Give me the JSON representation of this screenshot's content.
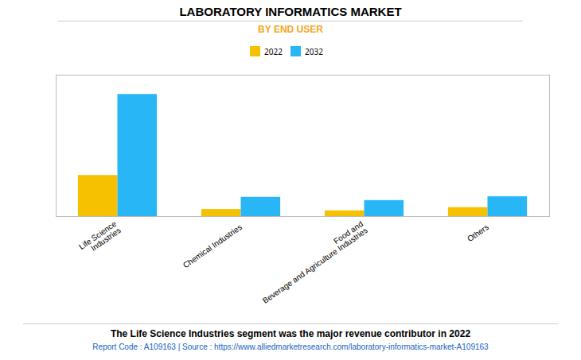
{
  "chart_data": {
    "type": "bar",
    "title": "LABORATORY INFORMATICS MARKET",
    "subtitle": "BY END USER",
    "categories": [
      "Life Science\nIndustries",
      "Chemical Industries",
      "Food and\nBeverage and Agriculture Industries",
      "Others"
    ],
    "series": [
      {
        "name": "2022",
        "color": "#F5C100",
        "values": [
          3.2,
          0.55,
          0.45,
          0.7
        ]
      },
      {
        "name": "2032",
        "color": "#29B6F6",
        "values": [
          9.5,
          1.5,
          1.25,
          1.55
        ]
      }
    ],
    "ylim": [
      0,
      11
    ],
    "yticks": [],
    "grid": false,
    "legend": "top",
    "tick_labels": "x",
    "annotations": [
      "The Life Science Industries segment was the major revenue contributor in 2022",
      "Report Code : A109163  |  Source : https://www.alliedmarketresearch.com/laboratory-informatics-market-A109163"
    ]
  }
}
